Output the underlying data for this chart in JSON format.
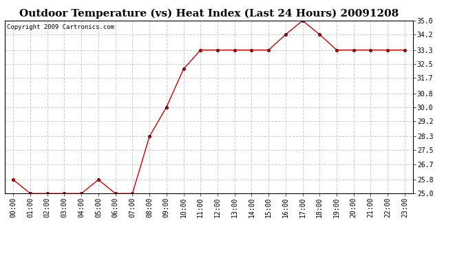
{
  "title": "Outdoor Temperature (vs) Heat Index (Last 24 Hours) 20091208",
  "copyright": "Copyright 2009 Cartronics.com",
  "x_labels": [
    "00:00",
    "01:00",
    "02:00",
    "03:00",
    "04:00",
    "05:00",
    "06:00",
    "07:00",
    "08:00",
    "09:00",
    "10:00",
    "11:00",
    "12:00",
    "13:00",
    "14:00",
    "15:00",
    "16:00",
    "17:00",
    "18:00",
    "19:00",
    "20:00",
    "21:00",
    "22:00",
    "23:00"
  ],
  "y_values": [
    25.8,
    25.0,
    25.0,
    25.0,
    25.0,
    25.8,
    25.0,
    25.0,
    28.3,
    30.0,
    32.2,
    33.3,
    33.3,
    33.3,
    33.3,
    33.3,
    34.2,
    35.0,
    34.2,
    33.3,
    33.3,
    33.3,
    33.3,
    33.3
  ],
  "y_min": 25.0,
  "y_max": 35.0,
  "y_ticks": [
    25.0,
    25.8,
    26.7,
    27.5,
    28.3,
    29.2,
    30.0,
    30.8,
    31.7,
    32.5,
    33.3,
    34.2,
    35.0
  ],
  "line_color": "#cc0000",
  "marker_color": "#cc0000",
  "plot_bg_color": "#ffffff",
  "fig_bg_color": "#ffffff",
  "grid_color": "#cccccc",
  "title_fontsize": 11,
  "copyright_fontsize": 6.5,
  "tick_fontsize": 7
}
